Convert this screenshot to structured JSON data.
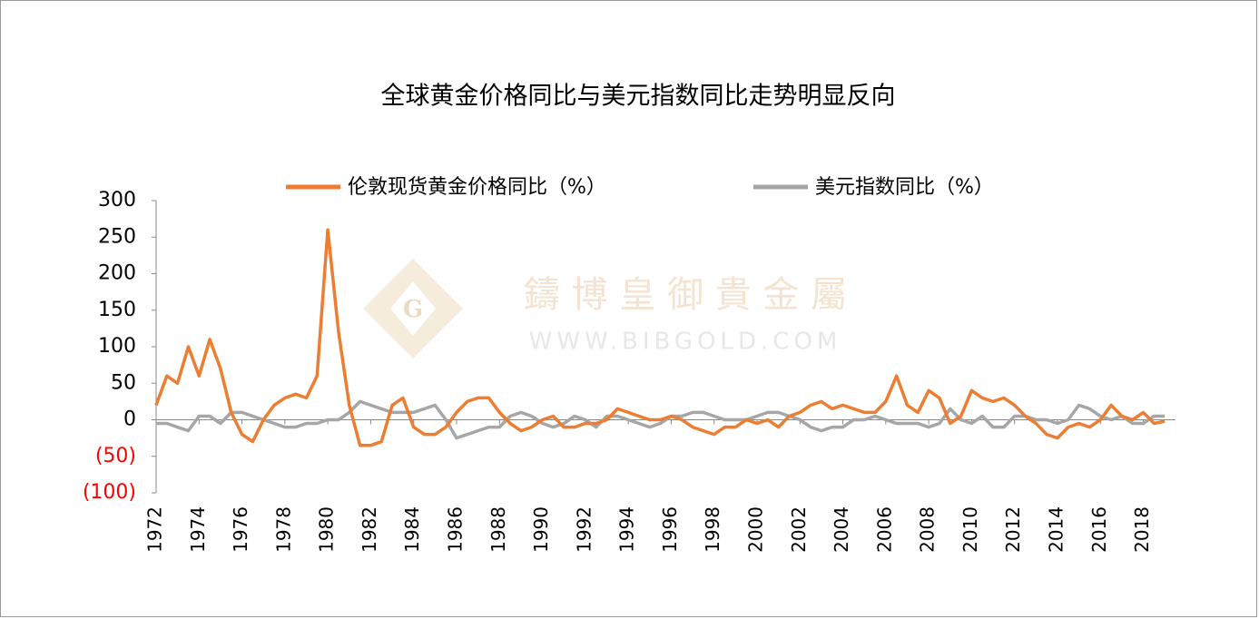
{
  "chart_data": {
    "type": "line",
    "title": "全球黄金价格同比与美元指数同比走势明显反向",
    "watermark": {
      "name": "鑄 博 皇 御 貴 金 屬",
      "url": "WWW.BIBGOLD.COM",
      "logo": "G"
    },
    "x": [
      1972,
      1972.5,
      1973,
      1973.5,
      1974,
      1974.5,
      1975,
      1975.5,
      1976,
      1976.5,
      1977,
      1977.5,
      1978,
      1978.5,
      1979,
      1979.5,
      1980,
      1980.5,
      1981,
      1981.5,
      1982,
      1982.5,
      1983,
      1983.5,
      1984,
      1984.5,
      1985,
      1985.5,
      1986,
      1986.5,
      1987,
      1987.5,
      1988,
      1988.5,
      1989,
      1989.5,
      1990,
      1990.5,
      1991,
      1991.5,
      1992,
      1992.5,
      1993,
      1993.5,
      1994,
      1994.5,
      1995,
      1995.5,
      1996,
      1996.5,
      1997,
      1997.5,
      1998,
      1998.5,
      1999,
      1999.5,
      2000,
      2000.5,
      2001,
      2001.5,
      2002,
      2002.5,
      2003,
      2003.5,
      2004,
      2004.5,
      2005,
      2005.5,
      2006,
      2006.5,
      2007,
      2007.5,
      2008,
      2008.5,
      2009,
      2009.5,
      2010,
      2010.5,
      2011,
      2011.5,
      2012,
      2012.5,
      2013,
      2013.5,
      2014,
      2014.5,
      2015,
      2015.5,
      2016,
      2016.5,
      2017,
      2017.5,
      2018,
      2018.5,
      2019
    ],
    "series": [
      {
        "name": "伦敦现货黄金价格同比（%）",
        "color": "#ed7d31",
        "values": [
          20,
          60,
          50,
          100,
          60,
          110,
          70,
          10,
          -20,
          -30,
          0,
          20,
          30,
          35,
          30,
          60,
          260,
          120,
          20,
          -35,
          -35,
          -30,
          20,
          30,
          -10,
          -20,
          -20,
          -10,
          10,
          25,
          30,
          30,
          10,
          -5,
          -15,
          -10,
          0,
          5,
          -10,
          -10,
          -5,
          -5,
          0,
          15,
          10,
          5,
          0,
          0,
          5,
          0,
          -10,
          -15,
          -20,
          -10,
          -10,
          0,
          -5,
          0,
          -10,
          5,
          10,
          20,
          25,
          15,
          20,
          15,
          10,
          10,
          25,
          60,
          20,
          10,
          40,
          30,
          -5,
          5,
          40,
          30,
          25,
          30,
          20,
          5,
          -5,
          -20,
          -25,
          -10,
          -5,
          -10,
          0,
          20,
          5,
          0,
          10,
          -5,
          -2
        ]
      },
      {
        "name": "美元指数同比（%）",
        "color": "#a6a6a6",
        "values": [
          -5,
          -5,
          -10,
          -15,
          5,
          5,
          -5,
          10,
          10,
          5,
          0,
          -5,
          -10,
          -10,
          -5,
          -5,
          0,
          0,
          10,
          25,
          20,
          15,
          10,
          10,
          10,
          15,
          20,
          0,
          -25,
          -20,
          -15,
          -10,
          -10,
          5,
          10,
          5,
          -5,
          -10,
          -5,
          5,
          0,
          -10,
          5,
          5,
          0,
          -5,
          -10,
          -5,
          5,
          5,
          10,
          10,
          5,
          0,
          0,
          0,
          5,
          10,
          10,
          5,
          0,
          -10,
          -15,
          -10,
          -10,
          0,
          0,
          5,
          0,
          -5,
          -5,
          -5,
          -10,
          -5,
          15,
          0,
          -5,
          5,
          -10,
          -10,
          5,
          5,
          0,
          0,
          -5,
          0,
          20,
          15,
          5,
          0,
          5,
          -5,
          -5,
          5,
          5
        ]
      }
    ],
    "xlim": [
      1972,
      2019.5
    ],
    "xticks": [
      1972,
      1974,
      1976,
      1978,
      1980,
      1982,
      1984,
      1986,
      1988,
      1990,
      1992,
      1994,
      1996,
      1998,
      2000,
      2002,
      2004,
      2006,
      2008,
      2010,
      2012,
      2014,
      2016,
      2018
    ],
    "ylim": [
      -100,
      300
    ],
    "yticks": [
      300,
      250,
      200,
      150,
      100,
      50,
      0,
      {
        "value": -50,
        "label": "(50)"
      },
      {
        "value": -100,
        "label": "(100)"
      }
    ],
    "negative_tick_color": "#ff0000",
    "legend": "top",
    "grid": false
  }
}
